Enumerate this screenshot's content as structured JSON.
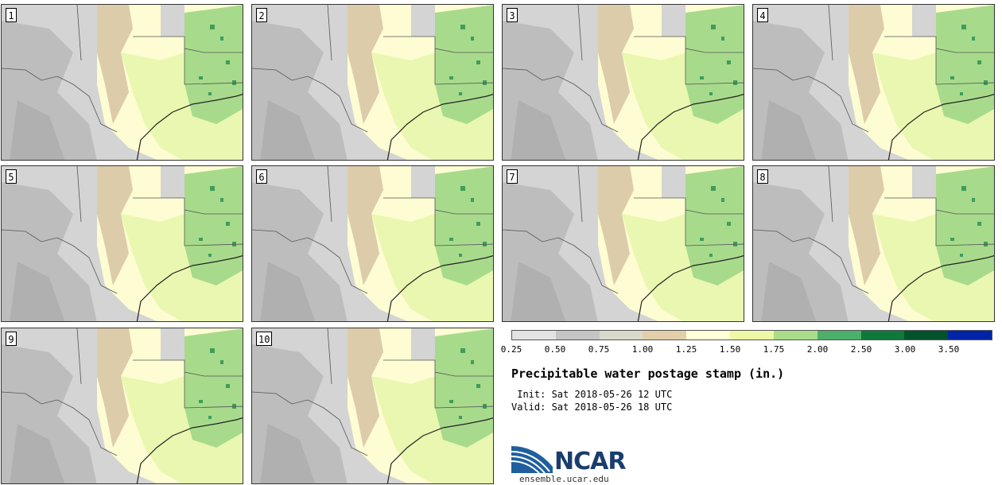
{
  "panels": [
    {
      "label": "1"
    },
    {
      "label": "2"
    },
    {
      "label": "3"
    },
    {
      "label": "4"
    },
    {
      "label": "5"
    },
    {
      "label": "6"
    },
    {
      "label": "7"
    },
    {
      "label": "8"
    },
    {
      "label": "9"
    },
    {
      "label": "10"
    }
  ],
  "colorbar": {
    "ticks": [
      "0.25",
      "0.50",
      "0.75",
      "1.00",
      "1.25",
      "1.50",
      "1.75",
      "2.00",
      "2.50",
      "3.00",
      "3.50"
    ],
    "colors": [
      "#e3e3e3",
      "#c4c4c4",
      "#d9d9cc",
      "#e2cfaa",
      "#ffffd8",
      "#eef8a6",
      "#aadd8a",
      "#4cb06a",
      "#0d7a3c",
      "#00532a",
      "#0024a8"
    ]
  },
  "title": "Precipitable water postage stamp (in.)",
  "init_line": " Init: Sat 2018-05-26 12 UTC",
  "valid_line": "Valid: Sat 2018-05-26 18 UTC",
  "logo": {
    "text": "NCAR",
    "website": "ensemble.ucar.edu"
  },
  "palette": {
    "land_gray": "#d4d4d4",
    "dark_gray": "#b8b8b8",
    "tan": "#dcccaa",
    "pale_yellow": "#fdfcd2",
    "light_green": "#e9f7b0",
    "mid_green": "#a8da8c",
    "dark_green": "#3d9e5a"
  }
}
